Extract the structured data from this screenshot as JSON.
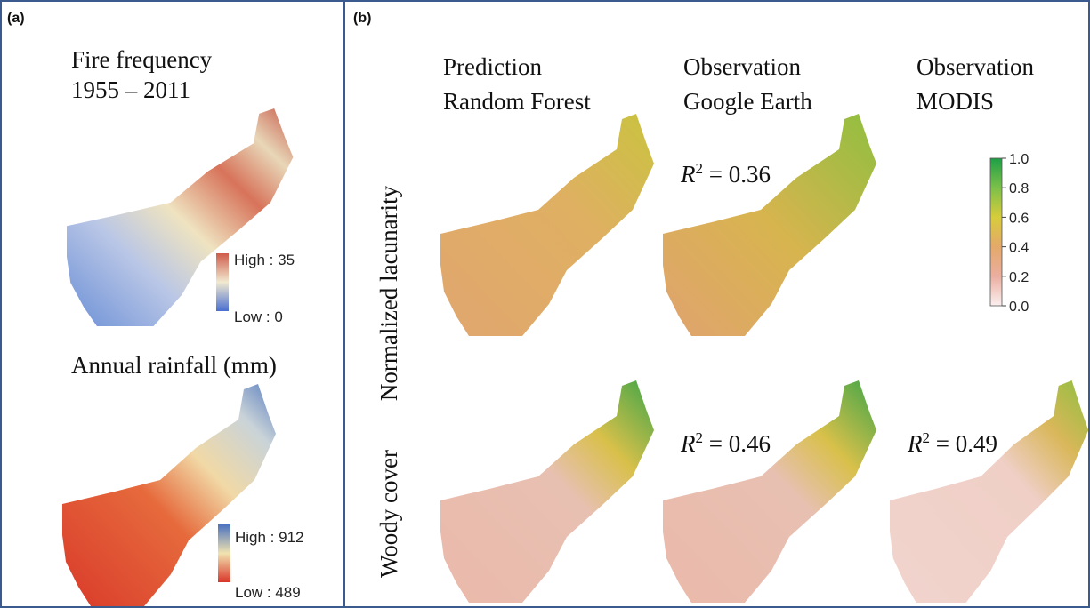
{
  "panel_a": {
    "label": "(a)",
    "fire": {
      "title_line1": "Fire frequency",
      "title_line2": "1955 – 2011",
      "high": "High : 35",
      "low": "Low : 0"
    },
    "rainfall": {
      "title": "Annual rainfall (mm)",
      "high": "High : 912",
      "low": "Low : 489"
    }
  },
  "panel_b": {
    "label": "(b)",
    "columns": [
      {
        "line1": "Prediction",
        "line2": "Random Forest"
      },
      {
        "line1": "Observation",
        "line2": "Google Earth"
      },
      {
        "line1": "Observation",
        "line2": "MODIS"
      }
    ],
    "rows": [
      "Normalized lacunarity",
      "Woody cover"
    ],
    "r2": [
      {
        "symbol": "R",
        "sup": "2",
        "text": " = 0.36"
      },
      {
        "symbol": "R",
        "sup": "2",
        "text": " = 0.46"
      },
      {
        "symbol": "R",
        "sup": "2",
        "text": " = 0.49"
      }
    ],
    "colorbar": {
      "lim": [
        0,
        1
      ],
      "ticks": [
        {
          "value": 1,
          "label": "1.0"
        },
        {
          "value": 0.8,
          "label": "0.8"
        },
        {
          "value": 0.6,
          "label": "0.6"
        },
        {
          "value": 0.4,
          "label": "0.4"
        },
        {
          "value": 0.2,
          "label": "0.2"
        },
        {
          "value": 0,
          "label": "0.0"
        }
      ]
    }
  }
}
